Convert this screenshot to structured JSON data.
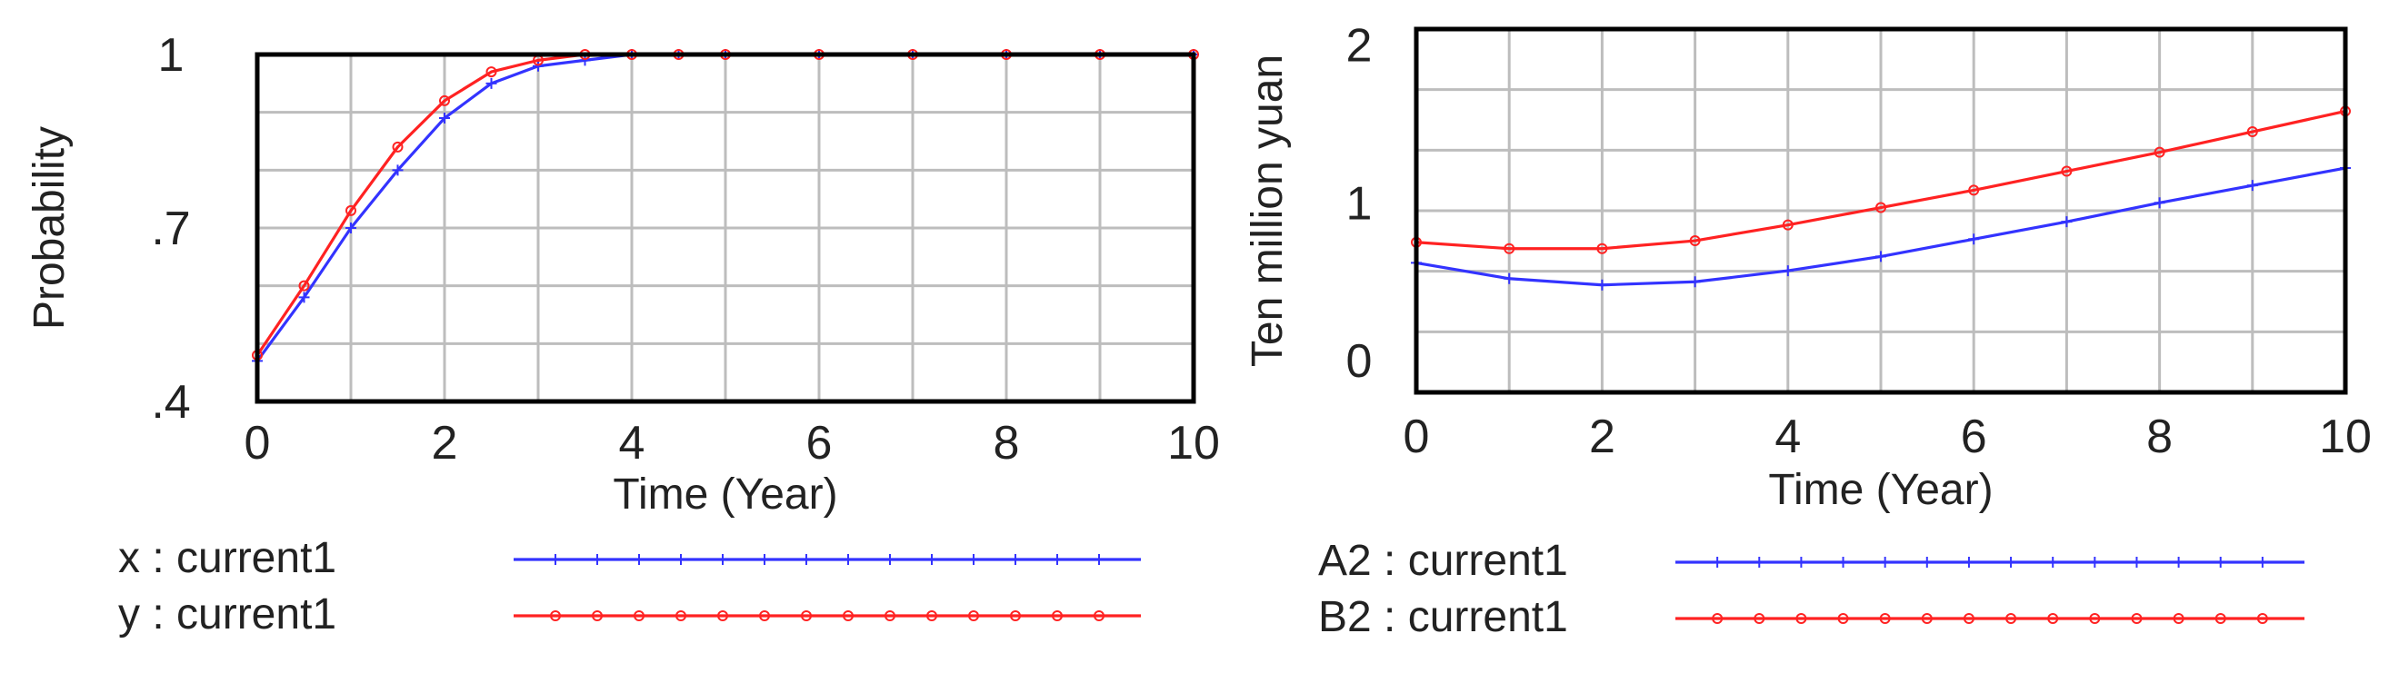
{
  "chart_data": [
    {
      "type": "line",
      "xlabel": "Time (Year)",
      "ylabel": "Probability",
      "xlim": [
        0,
        10
      ],
      "ylim": [
        0.4,
        1.0
      ],
      "x_ticks": [
        "0",
        "2",
        "4",
        "6",
        "8",
        "10"
      ],
      "y_ticks": [
        {
          "value": 1.0,
          "label": "1"
        },
        {
          "value": 0.7,
          "label": ".7"
        },
        {
          "value": 0.4,
          "label": ".4"
        }
      ],
      "grid": true,
      "legend_placement": "bottom",
      "series": [
        {
          "name": "x : current1",
          "color": "#3333ff",
          "marker": "cross",
          "x": [
            0,
            0.5,
            1,
            1.5,
            2,
            2.5,
            3,
            3.5,
            4,
            4.5,
            5,
            6,
            7,
            8,
            9,
            10
          ],
          "y": [
            0.47,
            0.58,
            0.7,
            0.8,
            0.89,
            0.95,
            0.98,
            0.99,
            1.0,
            1.0,
            1.0,
            1.0,
            1.0,
            1.0,
            1.0,
            1.0
          ]
        },
        {
          "name": "y : current1",
          "color": "#ff2222",
          "marker": "circle",
          "x": [
            0,
            0.5,
            1,
            1.5,
            2,
            2.5,
            3,
            3.5,
            4,
            4.5,
            5,
            6,
            7,
            8,
            9,
            10
          ],
          "y": [
            0.48,
            0.6,
            0.73,
            0.84,
            0.92,
            0.97,
            0.99,
            1.0,
            1.0,
            1.0,
            1.0,
            1.0,
            1.0,
            1.0,
            1.0,
            1.0
          ]
        }
      ]
    },
    {
      "type": "line",
      "xlabel": "Time (Year)",
      "ylabel": "Ten million yuan",
      "xlim": [
        0,
        10
      ],
      "ylim": [
        -0.2,
        2.1
      ],
      "x_ticks": [
        "0",
        "2",
        "4",
        "6",
        "8",
        "10"
      ],
      "y_ticks": [
        {
          "value": 2,
          "label": "2"
        },
        {
          "value": 1,
          "label": "1"
        },
        {
          "value": 0,
          "label": "0"
        }
      ],
      "grid": true,
      "legend_placement": "bottom",
      "series": [
        {
          "name": "A2 : current1",
          "color": "#3333ff",
          "marker": "cross",
          "x": [
            0,
            1,
            2,
            3,
            4,
            5,
            6,
            7,
            8,
            9,
            10
          ],
          "y": [
            0.62,
            0.52,
            0.48,
            0.5,
            0.57,
            0.66,
            0.77,
            0.88,
            1.0,
            1.11,
            1.22
          ]
        },
        {
          "name": "B2 : current1",
          "color": "#ff2222",
          "marker": "circle",
          "x": [
            0,
            1,
            2,
            3,
            4,
            5,
            6,
            7,
            8,
            9,
            10
          ],
          "y": [
            0.75,
            0.71,
            0.71,
            0.76,
            0.86,
            0.97,
            1.08,
            1.2,
            1.32,
            1.45,
            1.58
          ]
        }
      ]
    }
  ]
}
